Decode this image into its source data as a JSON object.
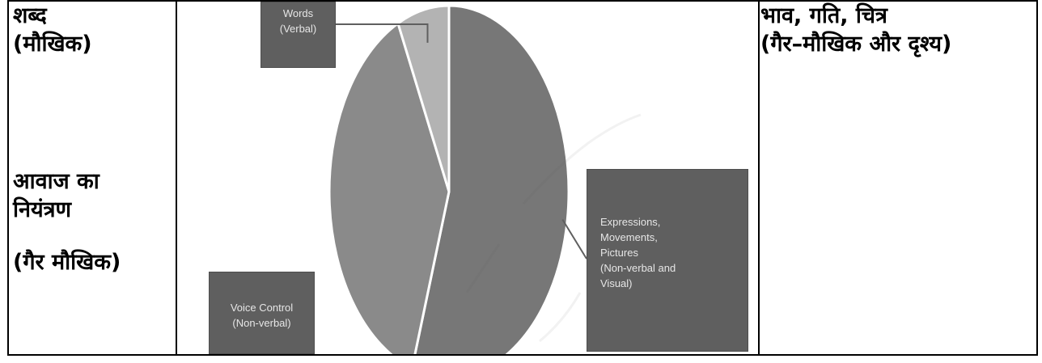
{
  "table": {
    "left": {
      "words_line1": "शब्द",
      "words_line2": "(मौखिक)",
      "voice_line1": "आवाज का",
      "voice_line2": "नियंत्रण",
      "voice_line3": "(गैर मौखिक)"
    },
    "right": {
      "line1": "भाव, गति, चित्र",
      "line2": "(गैर–मौखिक और दृश्य)"
    }
  },
  "chart_data": {
    "type": "pie",
    "labels": [
      "Expressions, Movements, Pictures (Non-verbal and Visual)",
      "Voice Control (Non-verbal)",
      "Words (Verbal)"
    ],
    "values": [
      55,
      38,
      7
    ],
    "box_lines": {
      "words": [
        "Words",
        "(Verbal)"
      ],
      "voice": [
        "Voice Control",
        "(Non-verbal)"
      ],
      "expr": [
        "Expressions,",
        "Movements,",
        "Pictures",
        "(Non-verbal and",
        "Visual)"
      ]
    },
    "colors": [
      "#777777",
      "#8a8a8a",
      "#b3b3b3"
    ],
    "box_color": "#5f5f5f"
  }
}
